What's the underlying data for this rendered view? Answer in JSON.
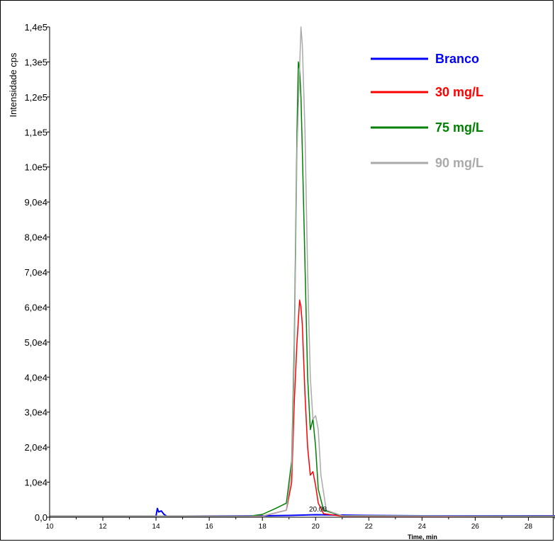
{
  "chart_data": {
    "type": "line",
    "ylabel": "Intensidade cps",
    "xlabel": "Time, min",
    "xlim": [
      10,
      29
    ],
    "ylim": [
      0,
      140000
    ],
    "x_ticks": [
      "10",
      "12",
      "14",
      "16",
      "18",
      "20",
      "22",
      "24",
      "26",
      "28"
    ],
    "y_ticks": [
      "0,0",
      "1,0e4",
      "2,0e4",
      "3,0e4",
      "4,0e4",
      "5,0e4",
      "6,0e4",
      "7,0e4",
      "8,0e4",
      "9,0e4",
      "1.0e5",
      "1,1e5",
      "1,2e5",
      "1,3e5",
      "1,4e5"
    ],
    "grid": false,
    "legend_position": "top-right",
    "peak_annotation": "20.08",
    "series": [
      {
        "name": "Branco",
        "color": "#0000ff",
        "x": [
          10,
          14,
          14.05,
          14.1,
          14.2,
          14.3,
          14.4,
          15,
          18,
          19,
          20,
          22,
          24,
          26,
          28,
          29
        ],
        "y": [
          300,
          300,
          2500,
          1500,
          1800,
          800,
          300,
          300,
          400,
          500,
          700,
          500,
          400,
          400,
          400,
          400
        ]
      },
      {
        "name": "30 mg/L",
        "color": "#ff0000",
        "x": [
          10,
          18,
          18.9,
          19.1,
          19.2,
          19.3,
          19.4,
          19.45,
          19.5,
          19.6,
          19.7,
          19.8,
          19.9,
          20.0,
          20.1,
          20.3,
          21,
          29
        ],
        "y": [
          300,
          300,
          2000,
          10000,
          33000,
          50000,
          62000,
          60000,
          55000,
          35000,
          20000,
          12000,
          13000,
          9000,
          4000,
          1000,
          300,
          300
        ]
      },
      {
        "name": "75 mg/L",
        "color": "#008000",
        "x": [
          10,
          17.5,
          18,
          18.5,
          18.9,
          19.1,
          19.2,
          19.3,
          19.35,
          19.4,
          19.45,
          19.5,
          19.6,
          19.7,
          19.8,
          19.9,
          20.0,
          20.1,
          20.3,
          21,
          29
        ],
        "y": [
          300,
          300,
          800,
          2500,
          4000,
          16000,
          50000,
          110000,
          130000,
          128000,
          120000,
          105000,
          72000,
          40000,
          25000,
          28000,
          20000,
          8000,
          2000,
          400,
          300
        ]
      },
      {
        "name": "90 mg/L",
        "color": "#aaaaaa",
        "x": [
          10,
          18,
          18.9,
          19.1,
          19.2,
          19.3,
          19.4,
          19.45,
          19.5,
          19.6,
          19.7,
          19.8,
          19.9,
          20.0,
          20.1,
          20.2,
          20.4,
          21,
          29
        ],
        "y": [
          300,
          300,
          2000,
          14000,
          45000,
          105000,
          128000,
          140000,
          135000,
          110000,
          70000,
          40000,
          28000,
          29000,
          25000,
          12000,
          2000,
          400,
          300
        ]
      }
    ]
  }
}
